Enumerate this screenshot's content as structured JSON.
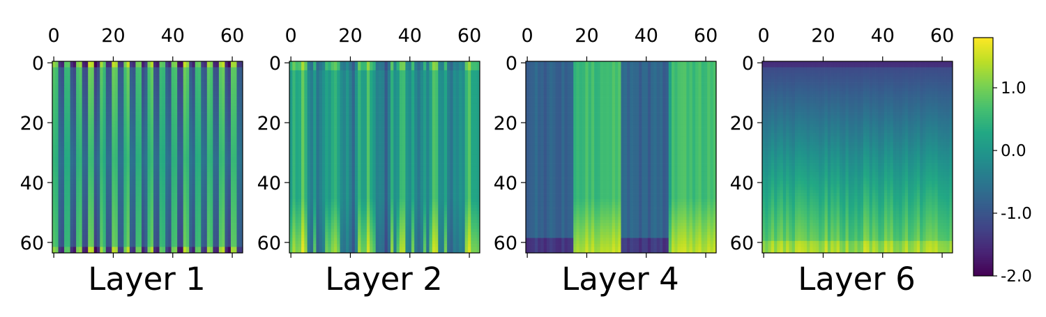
{
  "chart_data": {
    "type": "heatmap",
    "colormap": "viridis",
    "grid": false,
    "panels": [
      {
        "title": "Layer 1",
        "x_ticks": [
          0,
          20,
          40,
          60
        ],
        "y_ticks": [
          0,
          20,
          40,
          60
        ],
        "xlim": [
          0,
          63
        ],
        "ylim": [
          0,
          63
        ],
        "pattern": "alternating stripes every ~2 columns between about -1.4 and +1.1; extremes at top and bottom rows"
      },
      {
        "title": "Layer 2",
        "x_ticks": [
          0,
          20,
          40,
          60
        ],
        "y_ticks": [
          0,
          20,
          40,
          60
        ],
        "xlim": [
          0,
          63
        ],
        "ylim": [
          0,
          63
        ],
        "pattern": "irregular vertical bands, mostly between -0.9 and +0.9, brighter near bottom"
      },
      {
        "title": "Layer 4",
        "x_ticks": [
          0,
          20,
          40,
          60
        ],
        "y_ticks": [
          0,
          20,
          40,
          60
        ],
        "xlim": [
          0,
          63
        ],
        "ylim": [
          0,
          63
        ],
        "pattern": "four wide blocks of 16 columns: low / high / low / high (about -0.9 / +0.9), high blocks brighter at bottom"
      },
      {
        "title": "Layer 6",
        "x_ticks": [
          0,
          20,
          40,
          60
        ],
        "y_ticks": [
          0,
          20,
          40,
          60
        ],
        "xlim": [
          0,
          63
        ],
        "ylim": [
          0,
          63
        ],
        "pattern": "vertical gradient from about -1.2 at top to about +1.3 at bottom"
      }
    ],
    "colorbar": {
      "range": [
        -2.0,
        1.8
      ],
      "ticks": [
        {
          "value": 1.0,
          "label": "1.0"
        },
        {
          "value": 0.0,
          "label": "0.0"
        },
        {
          "value": -1.0,
          "label": "-1.0"
        },
        {
          "value": -2.0,
          "label": "-2.0"
        }
      ]
    }
  }
}
